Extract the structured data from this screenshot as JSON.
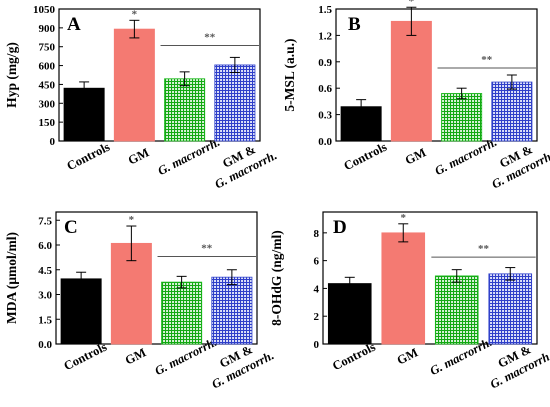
{
  "figure": {
    "bar_colors": [
      "#000000",
      "#f47a72",
      "#19b81a",
      "#3344cc"
    ],
    "bar_patterns": [
      "solid",
      "solid",
      "grid-green",
      "grid-blue"
    ]
  },
  "chart_data": [
    {
      "type": "bar",
      "panel_label": "A",
      "ylabel": "Hyp (mg/g)",
      "categories": [
        [
          "Controls"
        ],
        [
          "GM"
        ],
        [
          "G. macrorrh."
        ],
        [
          "GM &",
          "G. macrorrh."
        ]
      ],
      "category_italic": [
        [
          false
        ],
        [
          false
        ],
        [
          true
        ],
        [
          false,
          true
        ]
      ],
      "values": [
        420,
        890,
        495,
        605
      ],
      "errors": [
        50,
        70,
        55,
        60
      ],
      "ylim": [
        0,
        1050
      ],
      "yticks": [
        0,
        150,
        300,
        450,
        600,
        750,
        900,
        1050
      ],
      "ytick_labels": [
        "0",
        "150",
        "300",
        "450",
        "600",
        "750",
        "900",
        "1050"
      ],
      "significance": [
        {
          "label": "*",
          "bar": 1
        },
        {
          "label": "**",
          "from": 2,
          "to": 3,
          "y": 760
        }
      ]
    },
    {
      "type": "bar",
      "panel_label": "B",
      "ylabel": "5-MSL (a.u.)",
      "categories": [
        [
          "Controls"
        ],
        [
          "GM"
        ],
        [
          "G. macrorrh."
        ],
        [
          "GM &",
          "G. macrorrh."
        ]
      ],
      "category_italic": [
        [
          false
        ],
        [
          false
        ],
        [
          true
        ],
        [
          false,
          true
        ]
      ],
      "values": [
        0.39,
        1.36,
        0.54,
        0.67
      ],
      "errors": [
        0.08,
        0.16,
        0.06,
        0.08
      ],
      "ylim": [
        0,
        1.5
      ],
      "yticks": [
        0,
        0.3,
        0.6,
        0.9,
        1.2,
        1.5
      ],
      "ytick_labels": [
        "0.0",
        "0.3",
        "0.6",
        "0.9",
        "1.2",
        "1.5"
      ],
      "significance": [
        {
          "label": "*",
          "bar": 1
        },
        {
          "label": "**",
          "from": 2,
          "to": 3,
          "y": 0.83
        }
      ]
    },
    {
      "type": "bar",
      "panel_label": "C",
      "ylabel": "MDA (μmol/ml)",
      "categories": [
        [
          "Controls"
        ],
        [
          "GM"
        ],
        [
          "G. macrorrh."
        ],
        [
          "GM &",
          "G. macrorrh."
        ]
      ],
      "category_italic": [
        [
          false
        ],
        [
          false
        ],
        [
          true
        ],
        [
          false,
          true
        ]
      ],
      "values": [
        3.95,
        6.1,
        3.75,
        4.05
      ],
      "errors": [
        0.4,
        1.05,
        0.35,
        0.45
      ],
      "ylim": [
        0,
        8
      ],
      "yticks": [
        0,
        1.5,
        3.0,
        4.5,
        6.0,
        7.5
      ],
      "ytick_labels": [
        "0.0",
        "1.5",
        "3.0",
        "4.5",
        "6.0",
        "7.5"
      ],
      "significance": [
        {
          "label": "*",
          "bar": 1
        },
        {
          "label": "**",
          "from": 2,
          "to": 3,
          "y": 5.3
        }
      ]
    },
    {
      "type": "bar",
      "panel_label": "D",
      "ylabel": "8-OHdG (ng/ml)",
      "categories": [
        [
          "Controls"
        ],
        [
          "GM"
        ],
        [
          "G. macrorrh."
        ],
        [
          "GM &",
          "G. macrorrh."
        ]
      ],
      "category_italic": [
        [
          false
        ],
        [
          false
        ],
        [
          true
        ],
        [
          false,
          true
        ]
      ],
      "values": [
        4.35,
        8.0,
        4.9,
        5.05
      ],
      "errors": [
        0.45,
        0.65,
        0.45,
        0.45
      ],
      "ylim": [
        0,
        9.5
      ],
      "yticks": [
        0,
        2,
        4,
        6,
        8
      ],
      "ytick_labels": [
        "0",
        "2",
        "4",
        "6",
        "8"
      ],
      "significance": [
        {
          "label": "*",
          "bar": 1
        },
        {
          "label": "**",
          "from": 2,
          "to": 3,
          "y": 6.25
        }
      ]
    }
  ]
}
